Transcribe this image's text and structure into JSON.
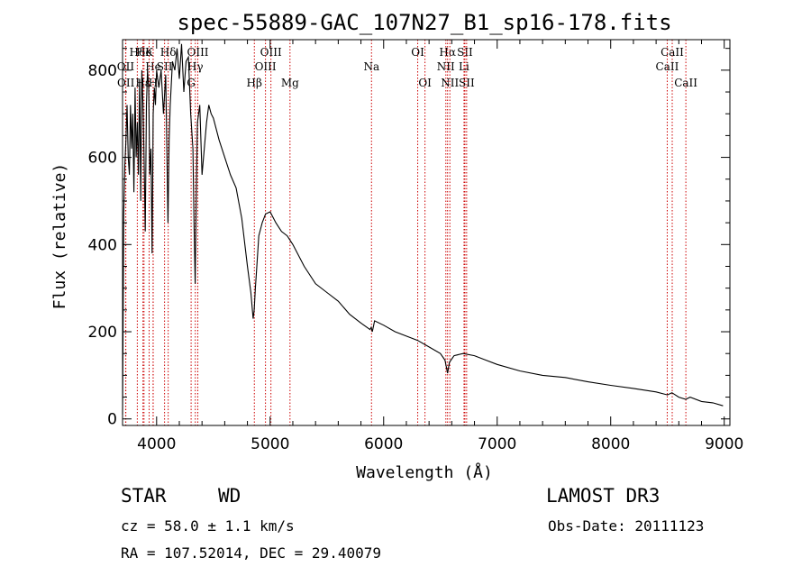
{
  "chart_data": {
    "type": "line",
    "title": "spec-55889-GAC_107N27_B1_sp16-178.fits",
    "xlabel": "Wavelength (Å)",
    "ylabel": "Flux (relative)",
    "xlim": [
      3700,
      9050
    ],
    "ylim": [
      -15,
      870
    ],
    "xticks": [
      4000,
      5000,
      6000,
      7000,
      8000,
      9000
    ],
    "yticks": [
      0,
      200,
      400,
      600,
      800
    ],
    "series": [
      {
        "name": "spectrum",
        "x": [
          3700,
          3710,
          3720,
          3730,
          3740,
          3750,
          3760,
          3770,
          3780,
          3790,
          3800,
          3810,
          3820,
          3830,
          3840,
          3850,
          3860,
          3870,
          3880,
          3890,
          3900,
          3910,
          3920,
          3930,
          3940,
          3950,
          3960,
          3970,
          3980,
          3990,
          4000,
          4020,
          4040,
          4060,
          4080,
          4100,
          4110,
          4120,
          4140,
          4160,
          4180,
          4200,
          4220,
          4240,
          4260,
          4280,
          4300,
          4320,
          4330,
          4340,
          4350,
          4360,
          4380,
          4400,
          4420,
          4440,
          4460,
          4480,
          4500,
          4550,
          4600,
          4650,
          4700,
          4750,
          4800,
          4830,
          4850,
          4860,
          4870,
          4880,
          4900,
          4930,
          4960,
          5000,
          5050,
          5100,
          5150,
          5200,
          5300,
          5400,
          5500,
          5600,
          5700,
          5800,
          5880,
          5890,
          5900,
          5920,
          6000,
          6100,
          6200,
          6300,
          6400,
          6500,
          6540,
          6563,
          6580,
          6620,
          6700,
          6800,
          6900,
          7000,
          7200,
          7400,
          7600,
          7800,
          8000,
          8200,
          8400,
          8500,
          8540,
          8600,
          8662,
          8700,
          8800,
          8900,
          8990
        ],
        "values": [
          10,
          470,
          580,
          640,
          720,
          600,
          560,
          720,
          620,
          700,
          520,
          760,
          600,
          680,
          560,
          780,
          500,
          800,
          720,
          600,
          430,
          720,
          800,
          760,
          560,
          620,
          380,
          700,
          760,
          720,
          800,
          760,
          800,
          700,
          790,
          450,
          640,
          720,
          820,
          800,
          850,
          780,
          860,
          750,
          820,
          830,
          700,
          620,
          440,
          310,
          520,
          680,
          720,
          560,
          620,
          680,
          720,
          700,
          690,
          640,
          600,
          560,
          530,
          460,
          350,
          290,
          230,
          250,
          300,
          340,
          420,
          450,
          470,
          475,
          450,
          430,
          420,
          400,
          350,
          310,
          290,
          270,
          240,
          220,
          205,
          210,
          200,
          225,
          215,
          200,
          190,
          180,
          165,
          150,
          135,
          105,
          130,
          145,
          150,
          145,
          135,
          125,
          110,
          100,
          95,
          85,
          77,
          70,
          62,
          55,
          60,
          50,
          45,
          50,
          40,
          37,
          30
        ]
      }
    ],
    "spectral_lines": [
      {
        "label": "Hδ",
        "wavelength": 3830,
        "row": 1
      },
      {
        "label": "OII",
        "wavelength": 3727,
        "row": 2
      },
      {
        "label": "OII",
        "wavelength": 3729,
        "row": 3
      },
      {
        "label": "He",
        "wavelength": 3889,
        "row": 1
      },
      {
        "label": "Hε",
        "wavelength": 3880,
        "row": 3
      },
      {
        "label": "K",
        "wavelength": 3934,
        "row": 1
      },
      {
        "label": "He",
        "wavelength": 3970,
        "row": 2
      },
      {
        "label": "H",
        "wavelength": 3969,
        "row": 3
      },
      {
        "label": "Hδ",
        "wavelength": 4102,
        "row": 1
      },
      {
        "label": "SII",
        "wavelength": 4070,
        "row": 2
      },
      {
        "label": "OIII",
        "wavelength": 4363,
        "row": 1
      },
      {
        "label": "Hγ",
        "wavelength": 4341,
        "row": 2
      },
      {
        "label": "G",
        "wavelength": 4304,
        "row": 3
      },
      {
        "label": "OIII",
        "wavelength": 5007,
        "row": 1
      },
      {
        "label": "OIII",
        "wavelength": 4959,
        "row": 2
      },
      {
        "label": "Hβ",
        "wavelength": 4861,
        "row": 3
      },
      {
        "label": "Mg",
        "wavelength": 5175,
        "row": 3
      },
      {
        "label": "Na",
        "wavelength": 5893,
        "row": 2
      },
      {
        "label": "OI",
        "wavelength": 6300,
        "row": 1
      },
      {
        "label": "OI",
        "wavelength": 6364,
        "row": 3
      },
      {
        "label": "Hα",
        "wavelength": 6563,
        "row": 1
      },
      {
        "label": "NII",
        "wavelength": 6548,
        "row": 2
      },
      {
        "label": "NII",
        "wavelength": 6583,
        "row": 3
      },
      {
        "label": "SII",
        "wavelength": 6716,
        "row": 1
      },
      {
        "label": "Li",
        "wavelength": 6708,
        "row": 2
      },
      {
        "label": "SII",
        "wavelength": 6731,
        "row": 3
      },
      {
        "label": "CaII",
        "wavelength": 8542,
        "row": 1
      },
      {
        "label": "CaII",
        "wavelength": 8498,
        "row": 2
      },
      {
        "label": "CaII",
        "wavelength": 8662,
        "row": 3
      }
    ]
  },
  "info": {
    "object_class": "STAR",
    "subclass": "WD",
    "survey": "LAMOST DR3",
    "cz": "cz = 58.0 ± 1.1 km/s",
    "obs_date": "Obs-Date: 20111123",
    "coords": "RA = 107.52014, DEC =  29.40079"
  }
}
